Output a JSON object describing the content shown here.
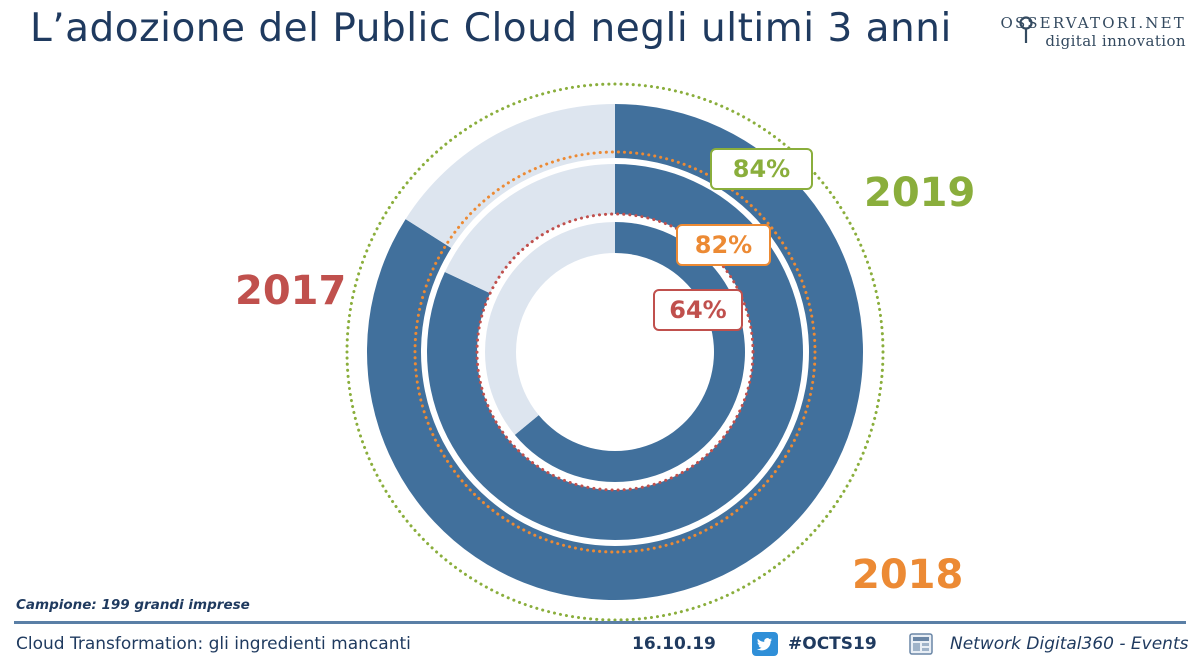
{
  "header": {
    "title": "L’adozione del Public Cloud negli ultimi 3 anni",
    "logo_line1": "OSSERVATORI.NET",
    "logo_line2": "digital innovation"
  },
  "chart_data": {
    "type": "pie",
    "variant": "concentric-rings",
    "title": "L’adozione del Public Cloud negli ultimi 3 anni",
    "series": [
      {
        "name": "2019",
        "value": 84,
        "label": "84%",
        "ring": "outer",
        "label_color": "#8aae3c"
      },
      {
        "name": "2018",
        "value": 82,
        "label": "82%",
        "ring": "middle",
        "label_color": "#ec8a34"
      },
      {
        "name": "2017",
        "value": 64,
        "label": "64%",
        "ring": "inner",
        "label_color": "#c0504d"
      }
    ],
    "filled_color": "#41709c",
    "remainder_color": "#dde5ef",
    "unit": "%"
  },
  "sample_note": "Campione: 199 grandi imprese",
  "footer": {
    "event": "Cloud Transformation: gli ingredienti mancanti",
    "date": "16.10.19",
    "hashtag": "#OCTS19",
    "network": "Network Digital360 - Events",
    "twitter_icon": "twitter-icon",
    "network_icon": "network-digital360-icon"
  }
}
